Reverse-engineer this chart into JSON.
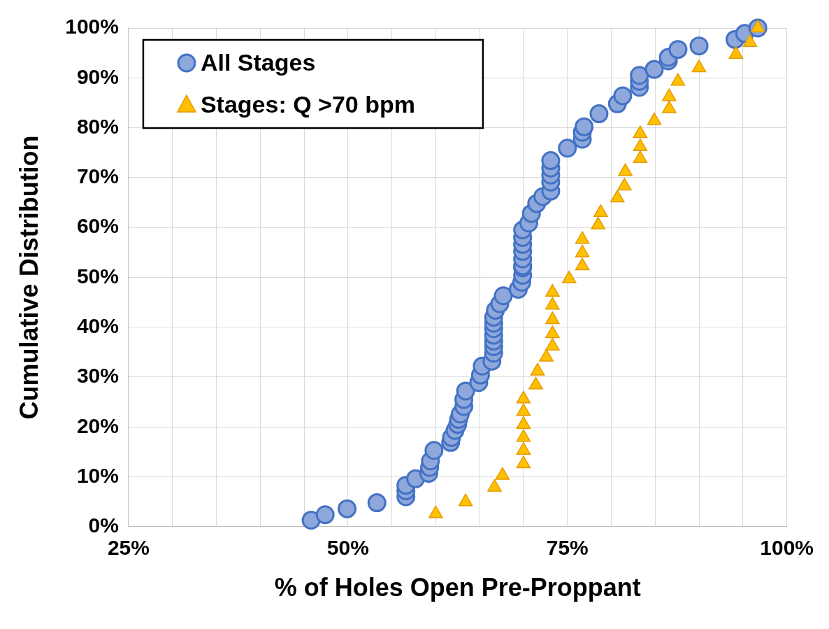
{
  "chart_data": {
    "type": "scatter",
    "xlabel": "% of Holes Open Pre-Proppant",
    "ylabel": "Cumulative Distribution",
    "xlim": [
      25,
      100
    ],
    "xticks": [
      {
        "value": 25,
        "label": "25%"
      },
      {
        "value": 30,
        "label": null
      },
      {
        "value": 35,
        "label": null
      },
      {
        "value": 40,
        "label": null
      },
      {
        "value": 45,
        "label": null
      },
      {
        "value": 50,
        "label": "50%"
      },
      {
        "value": 55,
        "label": null
      },
      {
        "value": 60,
        "label": null
      },
      {
        "value": 65,
        "label": null
      },
      {
        "value": 70,
        "label": null
      },
      {
        "value": 75,
        "label": "75%"
      },
      {
        "value": 80,
        "label": null
      },
      {
        "value": 85,
        "label": null
      },
      {
        "value": 90,
        "label": null
      },
      {
        "value": 95,
        "label": null
      },
      {
        "value": 100,
        "label": "100%"
      }
    ],
    "ylim": [
      0,
      100
    ],
    "yticks": [
      {
        "value": 0,
        "label": "0%"
      },
      {
        "value": 10,
        "label": "10%"
      },
      {
        "value": 20,
        "label": "20%"
      },
      {
        "value": 30,
        "label": "30%"
      },
      {
        "value": 40,
        "label": "40%"
      },
      {
        "value": 50,
        "label": "50%"
      },
      {
        "value": 60,
        "label": "60%"
      },
      {
        "value": 70,
        "label": "70%"
      },
      {
        "value": 80,
        "label": "80%"
      },
      {
        "value": 90,
        "label": "90%"
      },
      {
        "value": 100,
        "label": "100%"
      }
    ],
    "grid": true,
    "legend": "top left",
    "series": [
      {
        "name": "All Stages",
        "color": "#4472c4",
        "marker": "circle",
        "x": [
          45.8,
          47.4,
          49.9,
          53.3,
          56.6,
          56.6,
          56.6,
          57.7,
          59.2,
          59.3,
          59.4,
          59.8,
          61.7,
          61.8,
          62.2,
          62.5,
          62.6,
          62.8,
          63.2,
          63.2,
          63.4,
          64.9,
          65.1,
          65.3,
          66.4,
          66.6,
          66.6,
          66.6,
          66.6,
          66.6,
          66.6,
          66.6,
          66.8,
          67.3,
          67.7,
          69.4,
          69.8,
          69.9,
          69.9,
          69.9,
          69.9,
          69.9,
          69.9,
          69.9,
          69.9,
          70.6,
          70.9,
          71.5,
          72.2,
          73.1,
          73.1,
          73.1,
          73.1,
          73.1,
          75.0,
          76.7,
          76.7,
          76.9,
          78.6,
          80.7,
          81.3,
          83.2,
          83.2,
          83.2,
          84.9,
          86.5,
          86.5,
          87.6,
          90.0,
          94.1,
          95.2,
          96.7
        ],
        "values": [
          1.3,
          2.4,
          3.6,
          4.8,
          6.0,
          7.2,
          8.3,
          9.6,
          10.7,
          11.9,
          13.2,
          15.3,
          16.9,
          17.9,
          19.3,
          20.5,
          21.5,
          22.6,
          24.1,
          25.5,
          27.2,
          28.9,
          30.4,
          32.2,
          33.2,
          34.8,
          36.1,
          37.2,
          38.4,
          39.7,
          40.8,
          42.0,
          43.4,
          44.7,
          46.3,
          47.6,
          49.0,
          50.4,
          51.9,
          52.3,
          53.7,
          55.2,
          56.6,
          58.0,
          59.5,
          60.9,
          62.8,
          64.8,
          66.2,
          67.3,
          69.1,
          70.5,
          71.9,
          73.4,
          75.9,
          77.7,
          79.1,
          80.2,
          82.8,
          84.8,
          86.4,
          88.1,
          89.3,
          90.5,
          91.7,
          93.4,
          94.1,
          95.7,
          96.4,
          97.7,
          98.9,
          100.0
        ]
      },
      {
        "name": "Stages: Q >70 bpm",
        "color": "#ffc000",
        "marker": "triangle",
        "x": [
          60.0,
          63.4,
          66.7,
          67.6,
          70.0,
          70.0,
          70.0,
          70.0,
          70.0,
          70.0,
          71.4,
          71.6,
          72.6,
          73.3,
          73.3,
          73.3,
          73.3,
          73.3,
          75.2,
          76.7,
          76.7,
          76.7,
          78.5,
          78.8,
          80.7,
          81.5,
          81.6,
          83.3,
          83.3,
          83.3,
          84.9,
          86.6,
          86.6,
          87.6,
          90.0,
          94.2,
          95.8,
          96.7
        ],
        "values": [
          2.6,
          5.0,
          7.9,
          10.3,
          12.6,
          15.3,
          17.9,
          20.5,
          23.1,
          25.6,
          28.4,
          31.2,
          34.0,
          36.2,
          38.7,
          41.5,
          44.4,
          47.0,
          49.7,
          52.3,
          54.9,
          57.6,
          60.5,
          63.0,
          65.9,
          68.3,
          71.2,
          73.8,
          76.2,
          78.8,
          81.4,
          83.8,
          86.2,
          89.3,
          92.0,
          94.7,
          97.1,
          100.0
        ]
      }
    ]
  }
}
